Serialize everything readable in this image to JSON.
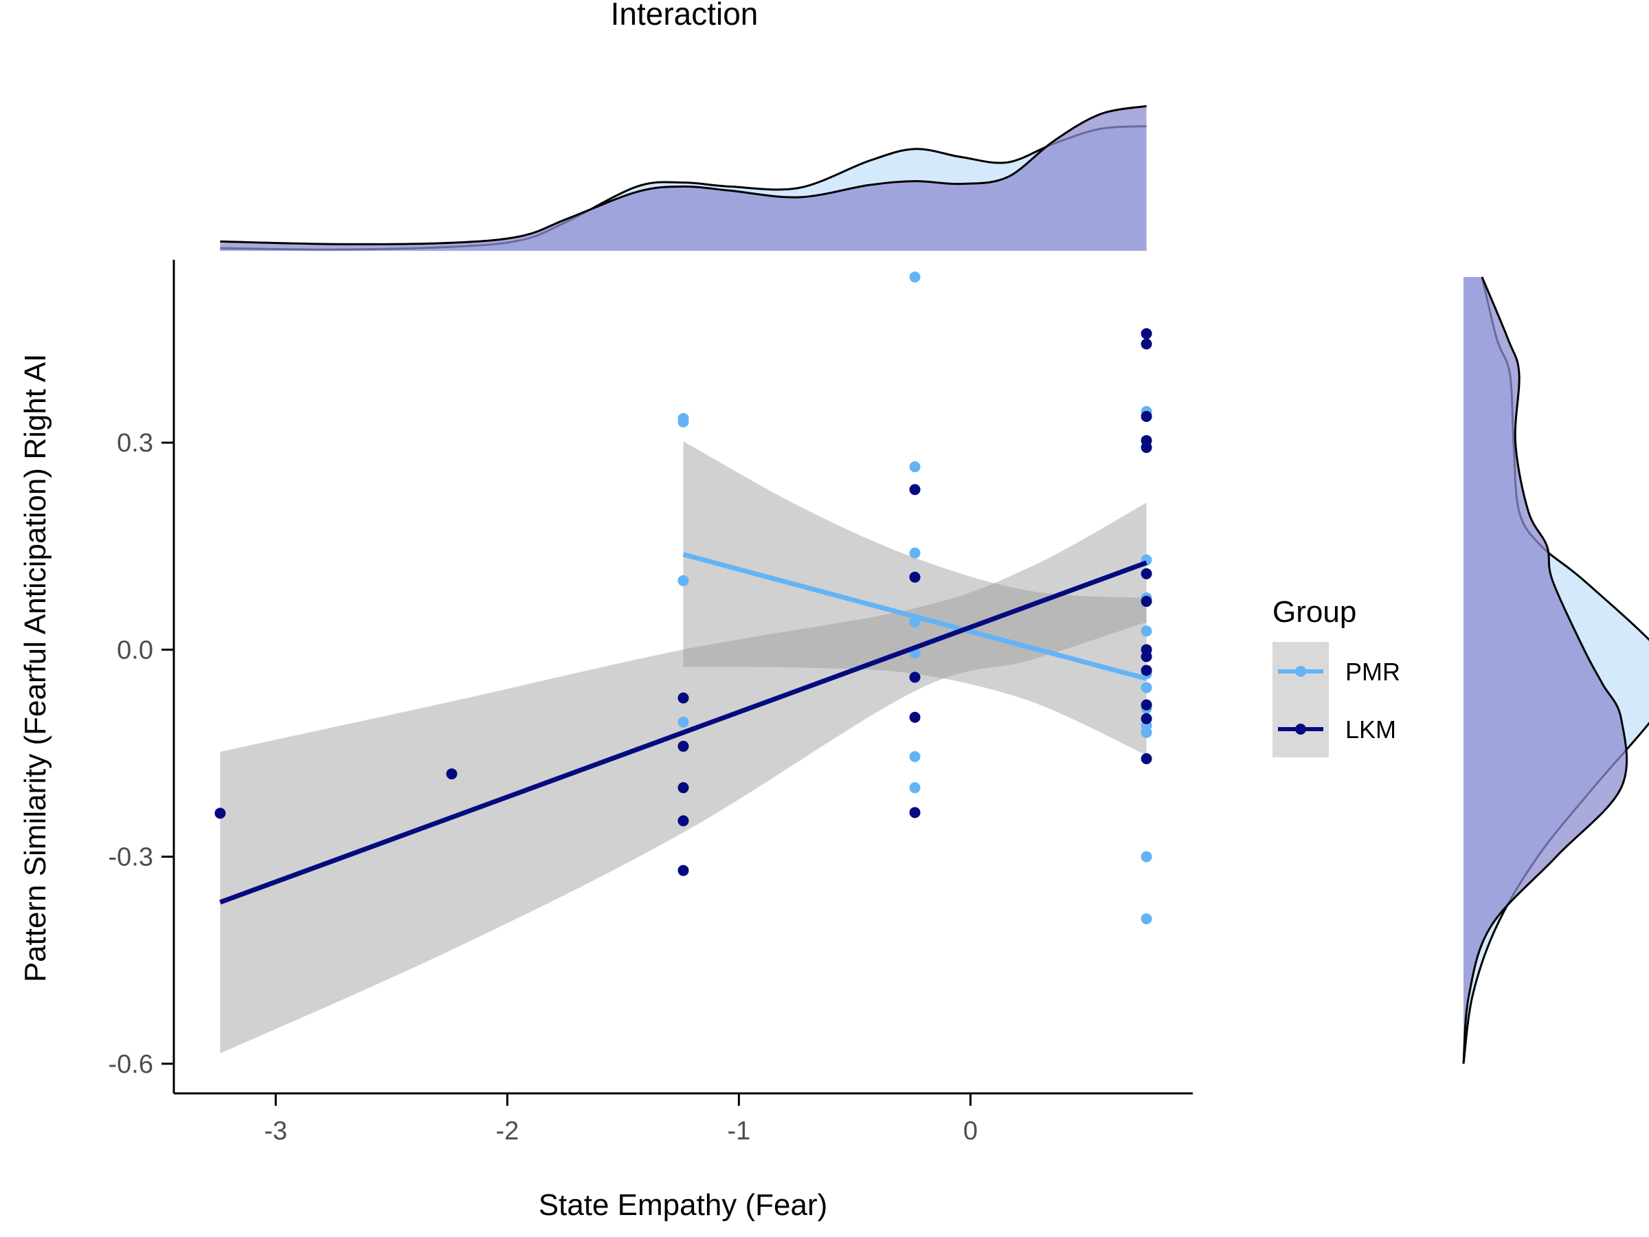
{
  "chart_data": {
    "type": "scatter",
    "title": "Interaction",
    "xlabel": "State Empathy (Fear)",
    "ylabel": "Pattern Similarity (Fearful Anticipation) Right AI",
    "xlim": [
      -3.44,
      0.96
    ],
    "ylim": [
      -0.643,
      0.565
    ],
    "x_ticks": [
      {
        "value": -3,
        "label": "-3"
      },
      {
        "value": -2,
        "label": "-2"
      },
      {
        "value": -1,
        "label": "-1"
      },
      {
        "value": 0,
        "label": "0"
      }
    ],
    "y_ticks": [
      {
        "value": -0.6,
        "label": "-0.6"
      },
      {
        "value": -0.3,
        "label": "-0.3"
      },
      {
        "value": 0.0,
        "label": "0.0"
      },
      {
        "value": 0.3,
        "label": "0.3"
      }
    ],
    "grid": false,
    "legend": {
      "title": "Group",
      "position": "right"
    },
    "series": [
      {
        "name": "PMR",
        "color": "#63b3f7",
        "points": [
          [
            -1.24,
            0.335
          ],
          [
            -1.24,
            0.33
          ],
          [
            -1.24,
            0.1
          ],
          [
            -1.24,
            -0.07
          ],
          [
            -1.24,
            -0.105
          ],
          [
            -0.24,
            0.54
          ],
          [
            -0.24,
            0.265
          ],
          [
            -0.24,
            0.14
          ],
          [
            -0.24,
            0.04
          ],
          [
            -0.24,
            -0.005
          ],
          [
            -0.24,
            -0.04
          ],
          [
            -0.24,
            -0.155
          ],
          [
            -0.24,
            -0.2
          ],
          [
            0.76,
            0.345
          ],
          [
            0.76,
            0.13
          ],
          [
            0.76,
            0.075
          ],
          [
            0.76,
            0.027
          ],
          [
            0.76,
            0.0
          ],
          [
            0.76,
            -0.035
          ],
          [
            0.76,
            -0.055
          ],
          [
            0.76,
            -0.085
          ],
          [
            0.76,
            -0.11
          ],
          [
            0.76,
            -0.12
          ],
          [
            0.76,
            -0.3
          ],
          [
            0.76,
            -0.39
          ]
        ],
        "fit": {
          "x": [
            -1.24,
            0.76
          ],
          "y": [
            0.138,
            -0.042
          ]
        },
        "ci_upper": [
          [
            -1.24,
            0.302
          ],
          [
            -0.74,
            0.208
          ],
          [
            -0.24,
            0.133
          ],
          [
            0.26,
            0.085
          ],
          [
            0.76,
            0.075
          ]
        ],
        "ci_lower": [
          [
            -1.24,
            -0.025
          ],
          [
            -0.74,
            -0.026
          ],
          [
            -0.24,
            -0.035
          ],
          [
            0.26,
            -0.075
          ],
          [
            0.76,
            -0.153
          ]
        ]
      },
      {
        "name": "LKM",
        "color": "#040a7f",
        "points": [
          [
            -3.24,
            -0.237
          ],
          [
            -2.24,
            -0.18
          ],
          [
            -1.24,
            -0.07
          ],
          [
            -1.24,
            -0.14
          ],
          [
            -1.24,
            -0.2
          ],
          [
            -1.24,
            -0.248
          ],
          [
            -1.24,
            -0.32
          ],
          [
            -0.24,
            0.232
          ],
          [
            -0.24,
            0.105
          ],
          [
            -0.24,
            -0.04
          ],
          [
            -0.24,
            -0.098
          ],
          [
            -0.24,
            -0.236
          ],
          [
            0.76,
            0.458
          ],
          [
            0.76,
            0.443
          ],
          [
            0.76,
            0.338
          ],
          [
            0.76,
            0.303
          ],
          [
            0.76,
            0.293
          ],
          [
            0.76,
            0.11
          ],
          [
            0.76,
            0.07
          ],
          [
            0.76,
            0.0
          ],
          [
            0.76,
            -0.01
          ],
          [
            0.76,
            -0.03
          ],
          [
            0.76,
            -0.08
          ],
          [
            0.76,
            -0.1
          ],
          [
            0.76,
            -0.158
          ]
        ],
        "fit": {
          "x": [
            -3.24,
            0.76
          ],
          "y": [
            -0.366,
            0.126
          ]
        },
        "ci_upper": [
          [
            -3.24,
            -0.148
          ],
          [
            -2.24,
            -0.075
          ],
          [
            -1.24,
            0.0
          ],
          [
            -0.24,
            0.06
          ],
          [
            0.26,
            0.12
          ],
          [
            0.76,
            0.213
          ]
        ],
        "ci_lower": [
          [
            -3.24,
            -0.585
          ],
          [
            -2.24,
            -0.435
          ],
          [
            -1.24,
            -0.265
          ],
          [
            -0.24,
            -0.06
          ],
          [
            0.26,
            -0.015
          ],
          [
            0.76,
            0.04
          ]
        ]
      }
    ],
    "marginal_x": {
      "series": [
        {
          "name": "PMR",
          "fill": "#c6e2fb",
          "x": [
            -3.24,
            -2.74,
            -2.24,
            -1.94,
            -1.74,
            -1.44,
            -1.24,
            -1.04,
            -0.74,
            -0.44,
            -0.24,
            -0.04,
            0.16,
            0.36,
            0.56,
            0.76
          ],
          "density": [
            0.02,
            0.01,
            0.03,
            0.08,
            0.22,
            0.48,
            0.51,
            0.48,
            0.47,
            0.67,
            0.76,
            0.7,
            0.66,
            0.8,
            0.91,
            0.93
          ]
        },
        {
          "name": "LKM",
          "fill": "#8d8dd1",
          "x": [
            -3.24,
            -2.74,
            -2.24,
            -1.94,
            -1.74,
            -1.44,
            -1.24,
            -1.04,
            -0.74,
            -0.44,
            -0.24,
            -0.04,
            0.16,
            0.36,
            0.56,
            0.76
          ],
          "density": [
            0.07,
            0.05,
            0.06,
            0.11,
            0.24,
            0.44,
            0.48,
            0.45,
            0.4,
            0.49,
            0.52,
            0.5,
            0.55,
            0.82,
            1.02,
            1.08
          ]
        }
      ]
    },
    "marginal_y": {
      "series": [
        {
          "name": "PMR",
          "fill": "#c6e2fb",
          "y": [
            -0.6,
            -0.5,
            -0.4,
            -0.3,
            -0.2,
            -0.1,
            -0.05,
            0.0,
            0.1,
            0.15,
            0.2,
            0.3,
            0.4,
            0.45,
            0.54
          ],
          "density": [
            0.0,
            0.05,
            0.18,
            0.4,
            0.7,
            1.02,
            1.12,
            1.05,
            0.65,
            0.42,
            0.3,
            0.27,
            0.25,
            0.18,
            0.1
          ]
        },
        {
          "name": "LKM",
          "fill": "#8d8dd1",
          "y": [
            -0.6,
            -0.5,
            -0.4,
            -0.3,
            -0.2,
            -0.1,
            -0.05,
            0.0,
            0.1,
            0.15,
            0.2,
            0.3,
            0.4,
            0.45,
            0.54
          ],
          "density": [
            0.0,
            0.03,
            0.15,
            0.5,
            0.85,
            0.85,
            0.75,
            0.65,
            0.48,
            0.45,
            0.35,
            0.28,
            0.3,
            0.24,
            0.1
          ]
        }
      ]
    }
  }
}
